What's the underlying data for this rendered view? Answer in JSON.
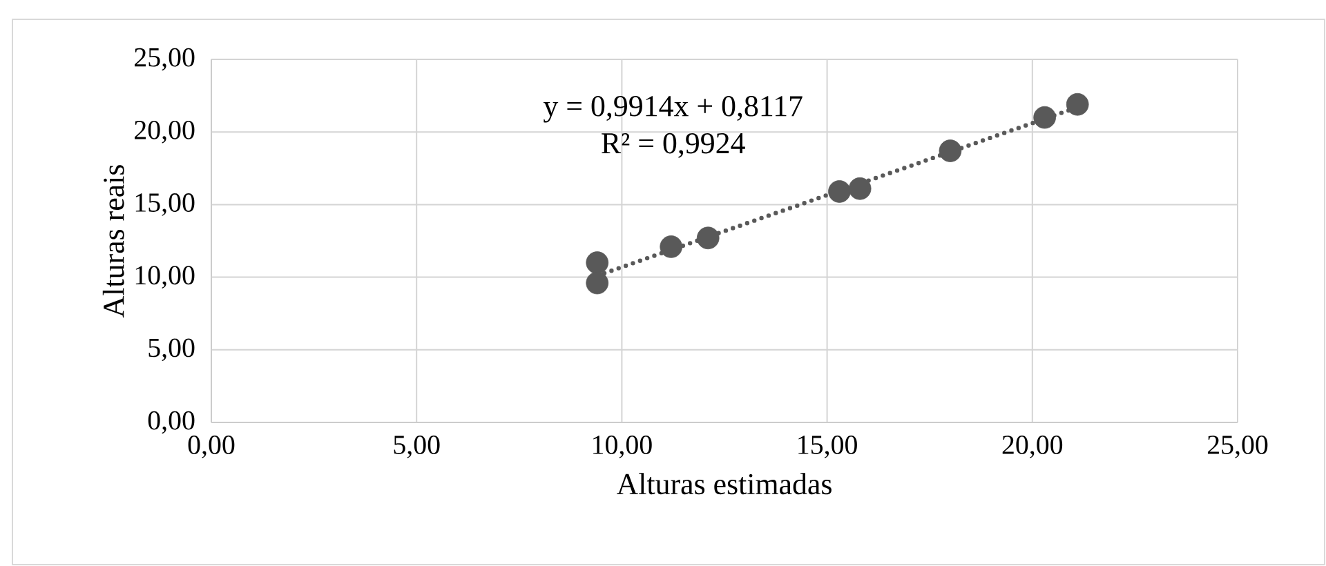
{
  "chart_data": {
    "type": "scatter",
    "xlabel": "Alturas estimadas",
    "ylabel": "Alturas reais",
    "series": [
      {
        "type": "scatter",
        "color": "#595959",
        "marker": "circle",
        "x": [
          9.4,
          9.4,
          11.2,
          12.1,
          15.3,
          15.8,
          18.0,
          20.3,
          21.1
        ],
        "values": [
          11.0,
          9.6,
          12.1,
          12.7,
          15.9,
          16.1,
          18.7,
          21.0,
          21.9
        ]
      },
      {
        "type": "line",
        "color": "#595959",
        "line_style": "dotted",
        "marker": "none",
        "x": [
          9.4,
          21.1
        ],
        "values": [
          10.1,
          21.7
        ]
      }
    ],
    "annotations": [
      "y = 0,9914x + 0,8117",
      "R² = 0,9924"
    ],
    "xlim": [
      0,
      25
    ],
    "ylim": [
      0,
      25
    ],
    "xticks": [
      {
        "value": 0,
        "label": "0,00"
      },
      {
        "value": 5,
        "label": "5,00"
      },
      {
        "value": 10,
        "label": "10,00"
      },
      {
        "value": 15,
        "label": "15,00"
      },
      {
        "value": 20,
        "label": "20,00"
      },
      {
        "value": 25,
        "label": "25,00"
      }
    ],
    "yticks": [
      {
        "value": 0,
        "label": "0,00"
      },
      {
        "value": 5,
        "label": "5,00"
      },
      {
        "value": 10,
        "label": "10,00"
      },
      {
        "value": 15,
        "label": "15,00"
      },
      {
        "value": 20,
        "label": "20,00"
      },
      {
        "value": 25,
        "label": "25,00"
      }
    ],
    "grid": true
  }
}
